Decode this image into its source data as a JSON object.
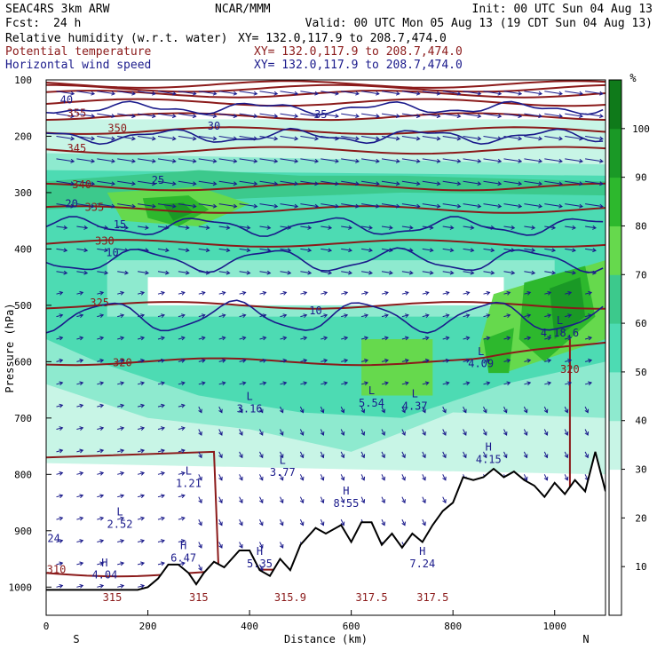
{
  "header": {
    "model": "SEAC4RS  3km ARW",
    "center": "NCAR/MMM",
    "init": "Init: 00 UTC Sun 04 Aug 13",
    "fcst_label": "Fcst:",
    "fcst_value": "24 h",
    "valid": "Valid: 00 UTC Mon 05 Aug 13 (19 CDT Sun 04 Aug 13)"
  },
  "fields": [
    {
      "name": "Relative humidity (w.r.t. water)",
      "xy": "XY= 132.0,117.9 to 208.7,474.0",
      "color": "#000000"
    },
    {
      "name": "Potential temperature",
      "xy": "XY= 132.0,117.9 to 208.7,474.0",
      "color": "#8b1a1a"
    },
    {
      "name": "Horizontal wind speed",
      "xy": "XY= 132.0,117.9 to 208.7,474.0",
      "color": "#1a1a8b"
    }
  ],
  "chart_data": {
    "type": "heatmap",
    "xlabel": "Distance (km)",
    "ylabel": "Pressure (hPa)",
    "xlim": [
      0,
      1100
    ],
    "ylim": [
      1050,
      100
    ],
    "x_ticks": [
      0,
      200,
      400,
      600,
      800,
      1000
    ],
    "y_ticks": [
      100,
      200,
      300,
      400,
      500,
      600,
      700,
      800,
      900,
      1000
    ],
    "x_end_left": "S",
    "x_end_right": "N",
    "colorbar": {
      "unit": "%",
      "ticks": [
        10,
        20,
        30,
        40,
        50,
        60,
        70,
        80,
        90,
        100
      ],
      "colors": [
        "#ffffff",
        "#ffffff",
        "#ffffff",
        "#c8f5e6",
        "#8eeacf",
        "#4ddbb3",
        "#3cc98c",
        "#66d94d",
        "#2db82d",
        "#1a9926",
        "#0f7a1a"
      ]
    },
    "theta_contours": [
      {
        "label": "310",
        "x": 20,
        "p": 975
      },
      {
        "label": "315",
        "x": 130,
        "p": 1025
      },
      {
        "label": "315",
        "x": 300,
        "p": 1025
      },
      {
        "label": "315.9",
        "x": 480,
        "p": 1025
      },
      {
        "label": "317.5",
        "x": 640,
        "p": 1025
      },
      {
        "label": "317.5",
        "x": 760,
        "p": 1025
      },
      {
        "label": "320",
        "x": 150,
        "p": 608
      },
      {
        "label": "320",
        "x": 1030,
        "p": 620
      },
      {
        "label": "325",
        "x": 105,
        "p": 502
      },
      {
        "label": "330",
        "x": 115,
        "p": 392
      },
      {
        "label": "335",
        "x": 95,
        "p": 332
      },
      {
        "label": "340",
        "x": 70,
        "p": 292
      },
      {
        "label": "345",
        "x": 60,
        "p": 228
      },
      {
        "label": "350",
        "x": 140,
        "p": 192
      },
      {
        "label": "355",
        "x": 60,
        "p": 165
      }
    ],
    "wind_speed_labels": [
      {
        "label": "10",
        "x": 130,
        "p": 413
      },
      {
        "label": "10",
        "x": 530,
        "p": 516
      },
      {
        "label": "15",
        "x": 145,
        "p": 363
      },
      {
        "label": "20",
        "x": 50,
        "p": 326
      },
      {
        "label": "25",
        "x": 220,
        "p": 284
      },
      {
        "label": "30",
        "x": 330,
        "p": 188
      },
      {
        "label": "35",
        "x": 540,
        "p": 168
      },
      {
        "label": "40",
        "x": 40,
        "p": 142
      }
    ],
    "rh_extrema": [
      {
        "type": "H",
        "value": "4.04",
        "x": 115,
        "p": 985
      },
      {
        "type": "L",
        "value": "2.52",
        "x": 145,
        "p": 895
      },
      {
        "type": "L",
        "value": "1.21",
        "x": 280,
        "p": 822
      },
      {
        "type": "H",
        "value": "6.47",
        "x": 270,
        "p": 955
      },
      {
        "type": "L",
        "value": "3.16",
        "x": 400,
        "p": 690
      },
      {
        "type": "L",
        "value": "3.77",
        "x": 465,
        "p": 803
      },
      {
        "type": "H",
        "value": "5.35",
        "x": 420,
        "p": 965
      },
      {
        "type": "H",
        "value": "8.55",
        "x": 590,
        "p": 858
      },
      {
        "type": "L",
        "value": "5.54",
        "x": 640,
        "p": 680
      },
      {
        "type": "L",
        "value": "4.37",
        "x": 725,
        "p": 685
      },
      {
        "type": "H",
        "value": "7.24",
        "x": 740,
        "p": 965
      },
      {
        "type": "H",
        "value": "4.15",
        "x": 870,
        "p": 780
      },
      {
        "type": "L",
        "value": "4.09",
        "x": 855,
        "p": 610
      },
      {
        "type": "L",
        "value": "4.18.6",
        "x": 1010,
        "p": 555
      }
    ],
    "corner_value": {
      "label": "24",
      "x": 15,
      "p": 920
    },
    "terrain_pressure": [
      [
        0,
        1005
      ],
      [
        40,
        1005
      ],
      [
        100,
        1005
      ],
      [
        180,
        1005
      ],
      [
        200,
        1000
      ],
      [
        220,
        985
      ],
      [
        240,
        960
      ],
      [
        260,
        960
      ],
      [
        280,
        975
      ],
      [
        295,
        995
      ],
      [
        310,
        975
      ],
      [
        330,
        955
      ],
      [
        350,
        965
      ],
      [
        380,
        935
      ],
      [
        400,
        935
      ],
      [
        420,
        970
      ],
      [
        440,
        980
      ],
      [
        460,
        950
      ],
      [
        480,
        970
      ],
      [
        500,
        925
      ],
      [
        530,
        895
      ],
      [
        550,
        905
      ],
      [
        580,
        890
      ],
      [
        600,
        920
      ],
      [
        620,
        885
      ],
      [
        640,
        885
      ],
      [
        660,
        925
      ],
      [
        680,
        905
      ],
      [
        700,
        930
      ],
      [
        720,
        905
      ],
      [
        740,
        920
      ],
      [
        760,
        890
      ],
      [
        780,
        865
      ],
      [
        800,
        850
      ],
      [
        820,
        805
      ],
      [
        840,
        810
      ],
      [
        860,
        805
      ],
      [
        880,
        790
      ],
      [
        900,
        805
      ],
      [
        920,
        795
      ],
      [
        940,
        810
      ],
      [
        960,
        820
      ],
      [
        980,
        840
      ],
      [
        1000,
        815
      ],
      [
        1020,
        835
      ],
      [
        1040,
        810
      ],
      [
        1060,
        830
      ],
      [
        1080,
        760
      ],
      [
        1100,
        830
      ]
    ]
  }
}
